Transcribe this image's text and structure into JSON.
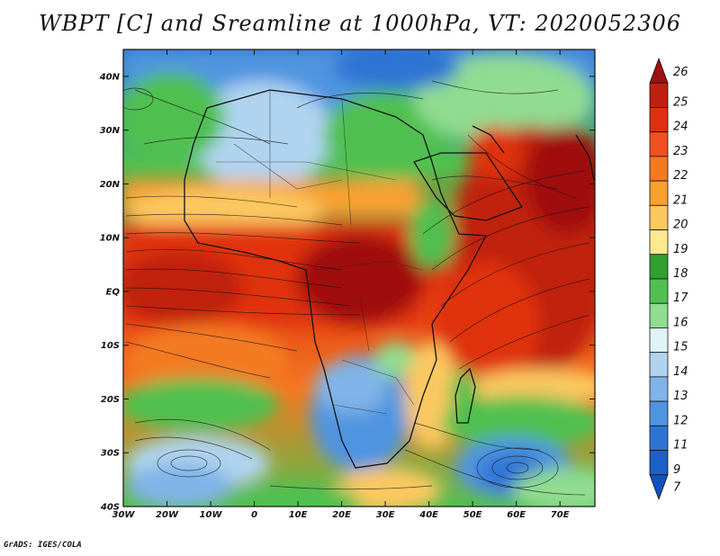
{
  "title": "WBPT [C] and Sreamline at 1000hPa, VT: 2020052306",
  "credit": "GrADS: IGES/COLA",
  "map": {
    "lon_range": [
      -30,
      78
    ],
    "lat_range": [
      -40,
      45
    ],
    "lat_ticks": [
      {
        "value": 40,
        "label": "40N"
      },
      {
        "value": 30,
        "label": "30N"
      },
      {
        "value": 20,
        "label": "20N"
      },
      {
        "value": 10,
        "label": "10N"
      },
      {
        "value": 0,
        "label": "EQ"
      },
      {
        "value": -10,
        "label": "10S"
      },
      {
        "value": -20,
        "label": "20S"
      },
      {
        "value": -30,
        "label": "30S"
      },
      {
        "value": -40,
        "label": "40S"
      }
    ],
    "lon_ticks": [
      {
        "value": -30,
        "label": "30W"
      },
      {
        "value": -20,
        "label": "20W"
      },
      {
        "value": -10,
        "label": "10W"
      },
      {
        "value": 0,
        "label": "0"
      },
      {
        "value": 10,
        "label": "10E"
      },
      {
        "value": 20,
        "label": "20E"
      },
      {
        "value": 30,
        "label": "30E"
      },
      {
        "value": 40,
        "label": "40E"
      },
      {
        "value": 50,
        "label": "50E"
      },
      {
        "value": 60,
        "label": "60E"
      },
      {
        "value": 70,
        "label": "70E"
      }
    ]
  },
  "colorbar": {
    "levels": [
      {
        "label": "26",
        "color": "#a01010"
      },
      {
        "label": "25",
        "color": "#c02010"
      },
      {
        "label": "24",
        "color": "#e03010"
      },
      {
        "label": "23",
        "color": "#f05020"
      },
      {
        "label": "22",
        "color": "#f47a20"
      },
      {
        "label": "21",
        "color": "#f8a030"
      },
      {
        "label": "20",
        "color": "#fcc860"
      },
      {
        "label": "19",
        "color": "#fee890"
      },
      {
        "label": "18",
        "color": "#30a030"
      },
      {
        "label": "17",
        "color": "#50c050"
      },
      {
        "label": "16",
        "color": "#90dc90"
      },
      {
        "label": "15",
        "color": "#e0f4f8"
      },
      {
        "label": "14",
        "color": "#b0d4f0"
      },
      {
        "label": "13",
        "color": "#80b4e8"
      },
      {
        "label": "12",
        "color": "#5094e0"
      },
      {
        "label": "11",
        "color": "#2e74d4"
      },
      {
        "label": "9",
        "color": "#1c60c8"
      },
      {
        "label": "7",
        "color": "#1450c0"
      }
    ]
  }
}
